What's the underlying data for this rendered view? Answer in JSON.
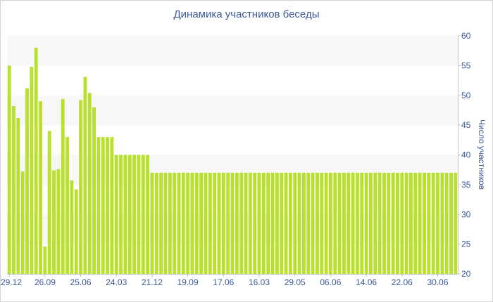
{
  "chart_data": {
    "type": "bar",
    "title": "Динамика участников беседы",
    "xlabel": "",
    "ylabel": "Число участников",
    "ylim": [
      20,
      60
    ],
    "yticks": [
      20,
      25,
      30,
      35,
      40,
      45,
      50,
      55,
      60
    ],
    "y_axis_side": "right",
    "grid": "alternating bands",
    "bar_color": "#b8e02c",
    "band_color": "#f7f7f7",
    "text_color": "#3c5a96",
    "x_tick_labels": [
      "29.12",
      "26.09",
      "25.06",
      "24.03",
      "21.12",
      "19.09",
      "17.06",
      "16.03",
      "29.05",
      "06.06",
      "14.06",
      "22.06",
      "30.06"
    ],
    "x_tick_bar_index": [
      0,
      8,
      16,
      24,
      32,
      40,
      48,
      56,
      64,
      72,
      80,
      88,
      96
    ],
    "values": [
      55,
      48.2,
      46.2,
      37.2,
      51.2,
      54.8,
      58,
      49,
      24.6,
      44,
      37.4,
      37.6,
      49.4,
      43,
      35.7,
      34.2,
      49.2,
      53.1,
      50.4,
      48,
      43,
      43,
      43,
      43,
      40,
      40,
      40,
      40,
      40,
      40,
      40,
      40,
      37,
      37,
      37,
      37,
      37,
      37,
      37,
      37,
      37,
      37,
      37,
      37,
      37,
      37,
      37,
      37,
      37,
      37,
      37,
      37,
      37,
      37,
      37,
      37,
      37,
      37,
      37,
      37,
      37,
      37,
      37,
      37,
      37,
      37,
      37,
      37,
      37,
      37,
      37,
      37,
      37,
      37,
      37,
      37,
      37,
      37,
      37,
      37,
      37,
      37,
      37,
      37,
      37,
      37,
      37,
      37,
      37,
      37,
      37,
      37,
      37,
      37,
      37,
      37,
      37,
      37,
      37,
      37,
      37
    ]
  }
}
